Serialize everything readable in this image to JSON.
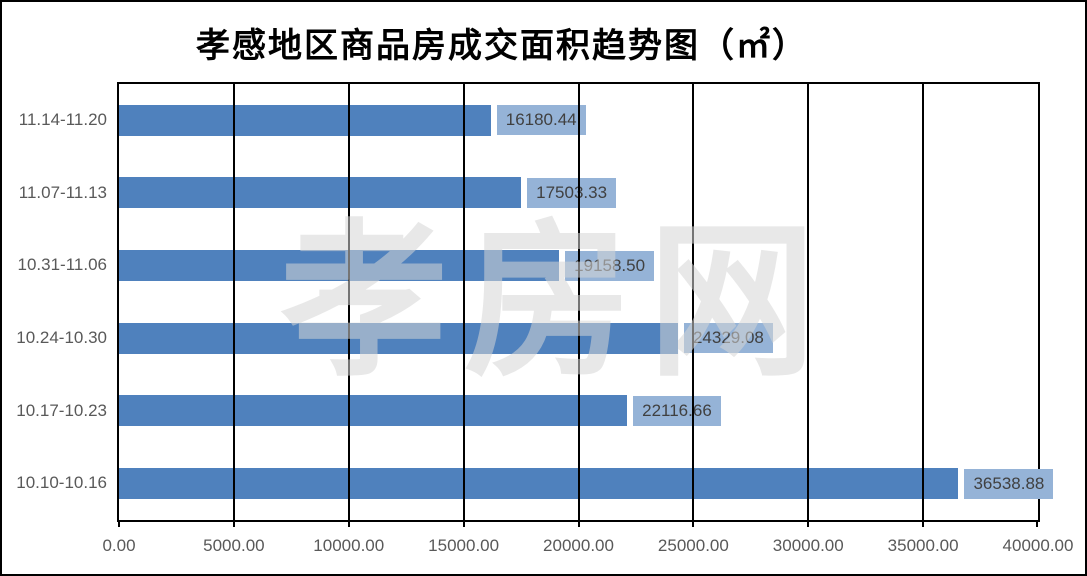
{
  "chart_data": {
    "type": "bar",
    "orientation": "horizontal",
    "title": "孝感地区商品房成交面积趋势图（㎡）",
    "watermark": "孝房网",
    "categories": [
      "11.14-11.20",
      "11.07-11.13",
      "10.31-11.06",
      "10.24-10.30",
      "10.17-10.23",
      "10.10-10.16"
    ],
    "values": [
      16180.44,
      17503.33,
      19158.5,
      24329.08,
      22116.66,
      36538.88
    ],
    "value_labels": [
      "16180.44",
      "17503.33",
      "19158.50",
      "24329.08",
      "22116.66",
      "36538.88"
    ],
    "xlim": [
      0,
      40000
    ],
    "x_tick_step": 5000,
    "x_tick_labels": [
      "0.00",
      "5000.00",
      "10000.00",
      "15000.00",
      "20000.00",
      "25000.00",
      "30000.00",
      "35000.00",
      "40000.00"
    ],
    "grid": true,
    "legend": false,
    "colors": {
      "bar": "#4F81BD",
      "value_label_bg": "#95B3D7",
      "value_label_text": "#404040",
      "axis_text": "#595959",
      "gridline": "#000000",
      "plot_border": "#000000",
      "title_text": "#000000",
      "watermark_text": "#D5D5D5"
    }
  }
}
